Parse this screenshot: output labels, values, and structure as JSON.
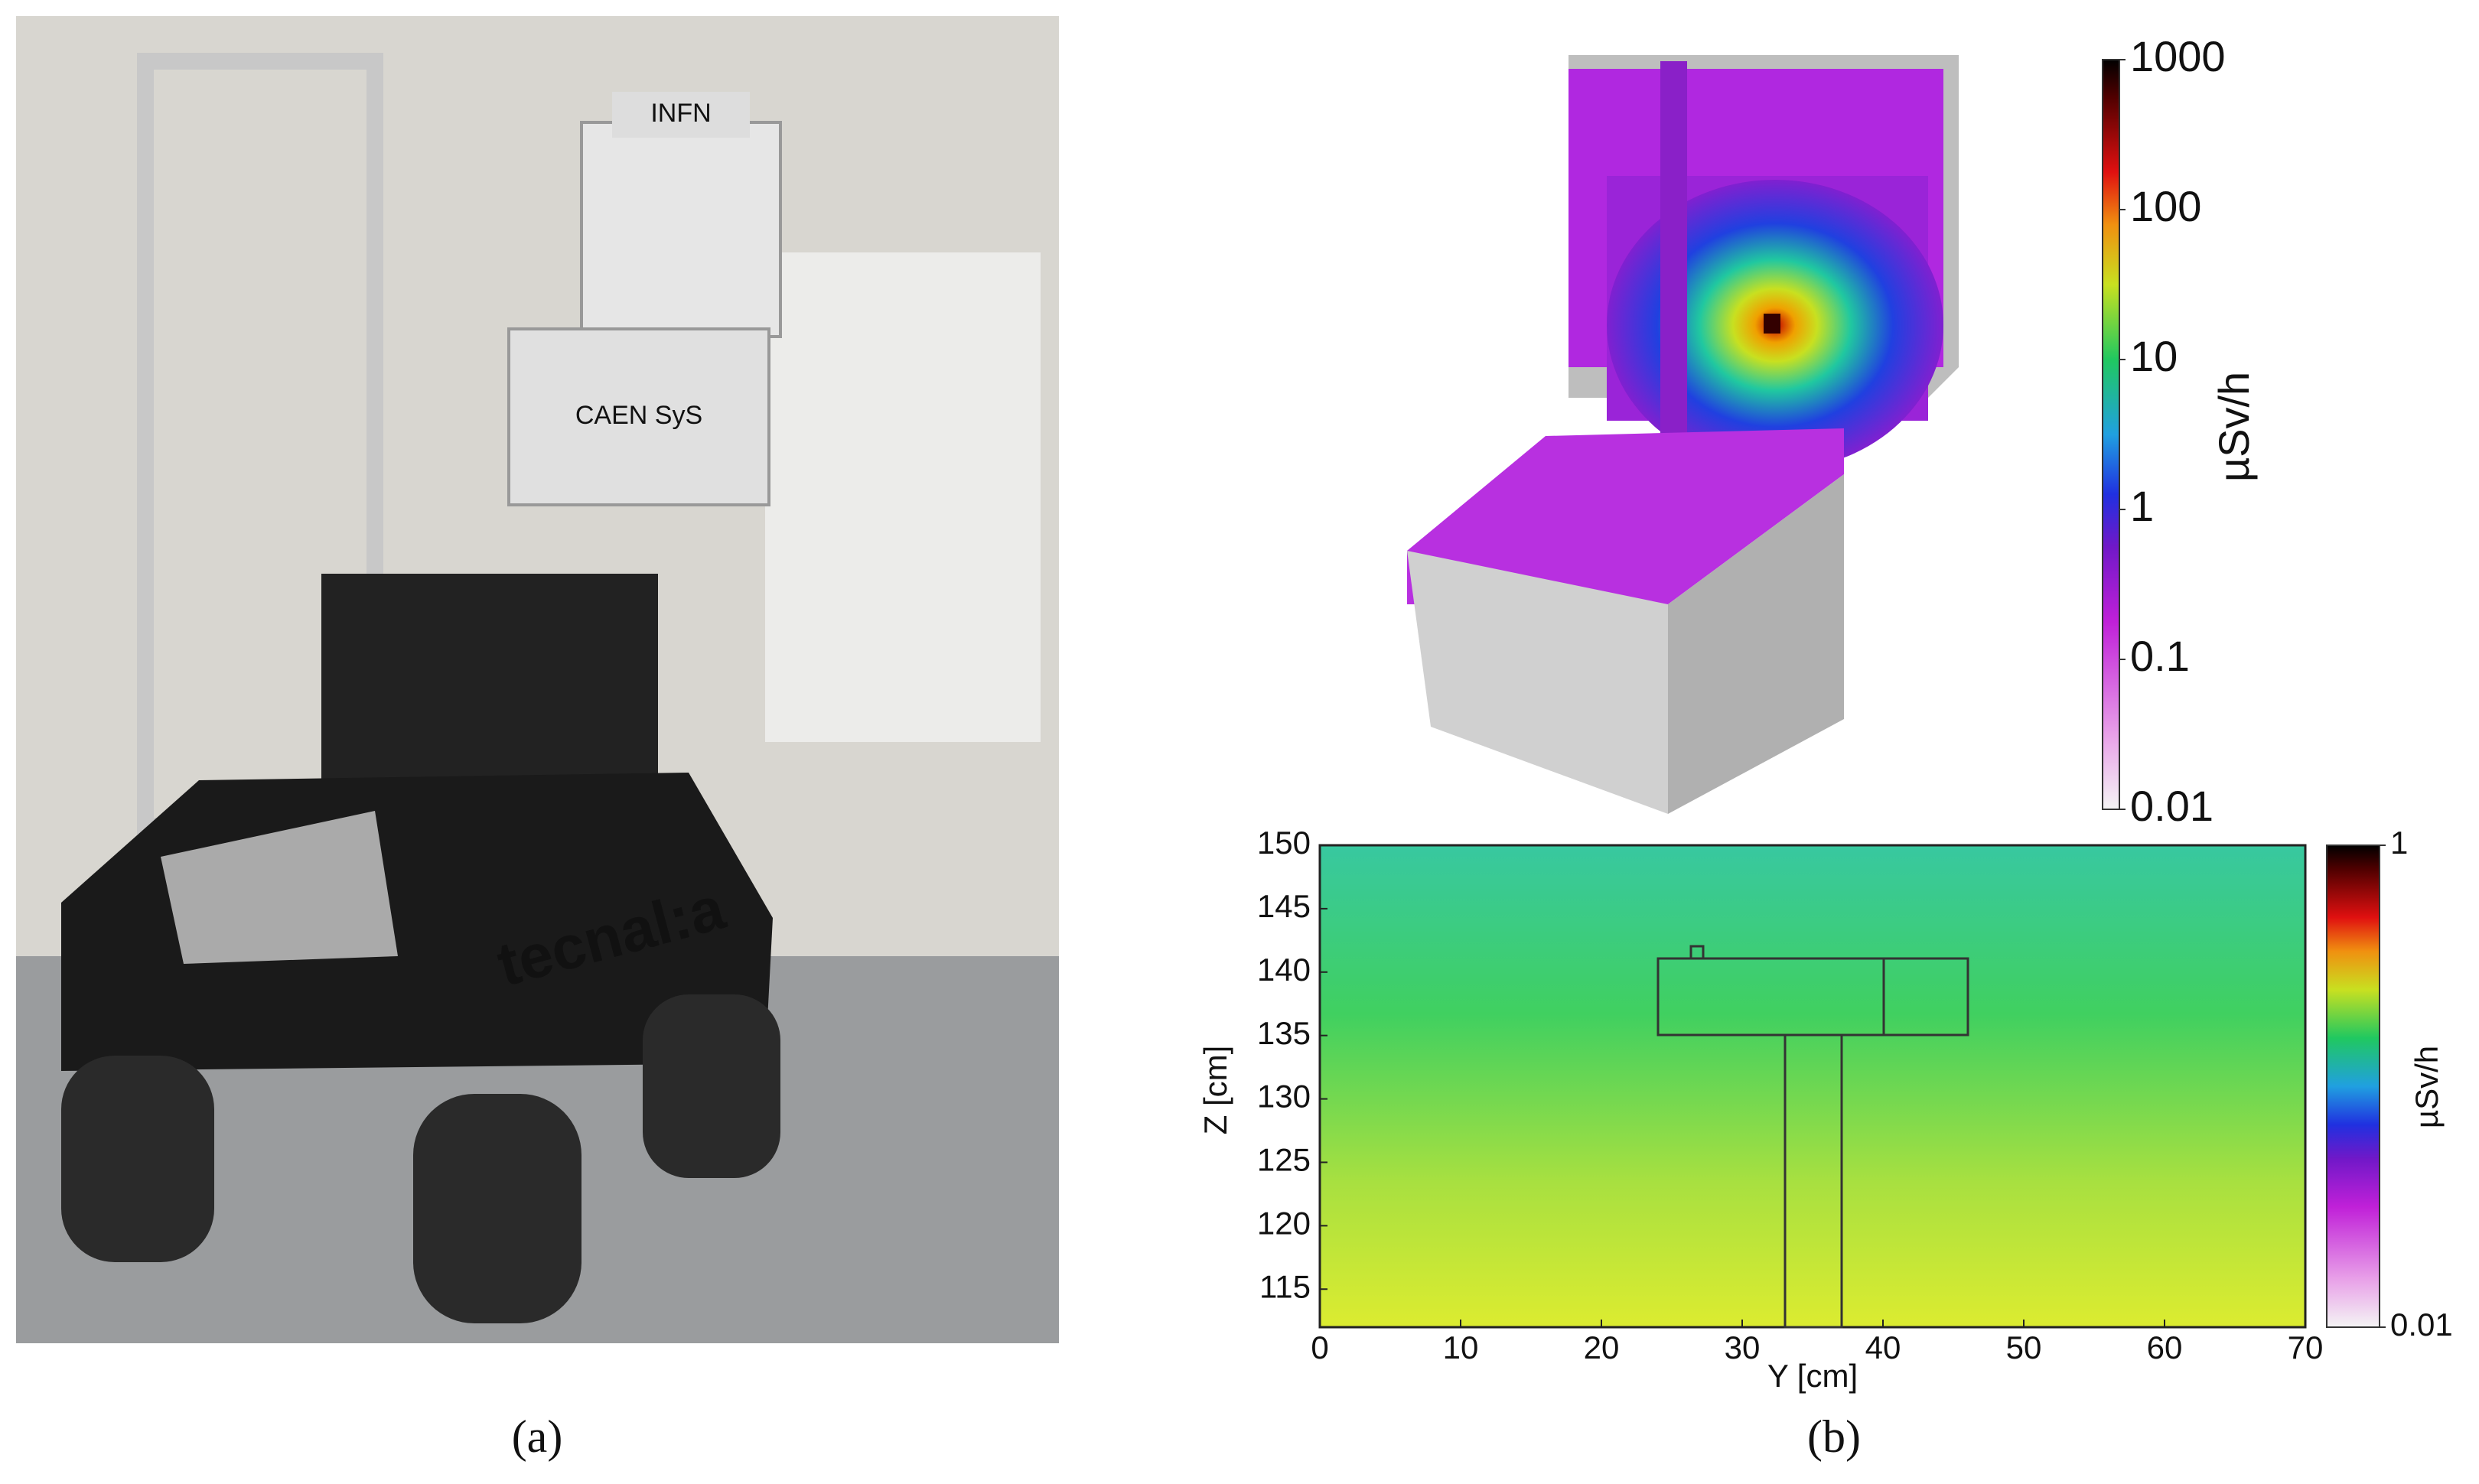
{
  "photo": {
    "labels": [
      "INFN",
      "CAEN SyS",
      "tecnal:a"
    ]
  },
  "panel_labels": [
    "(a)",
    "(b)"
  ],
  "render_colorbar": {
    "label": "µSv/h",
    "lim": [
      0.01,
      1000
    ],
    "ticks": [
      1000,
      100,
      10,
      1,
      0.1,
      0.01
    ],
    "log": true
  },
  "chart_data": {
    "type": "heatmap",
    "xlabel": "Y [cm]",
    "ylabel": "Z [cm]",
    "xlim": [
      0,
      70
    ],
    "xticks": [
      0,
      10,
      20,
      30,
      40,
      50,
      60,
      70
    ],
    "ylim": [
      112,
      150
    ],
    "yticks": [
      150,
      145,
      140,
      135,
      130,
      125,
      120,
      115
    ],
    "colorbar": {
      "label": "µSv/h",
      "lim": [
        0.01,
        1
      ],
      "ticks": [
        1,
        0.01
      ],
      "log": true
    }
  }
}
